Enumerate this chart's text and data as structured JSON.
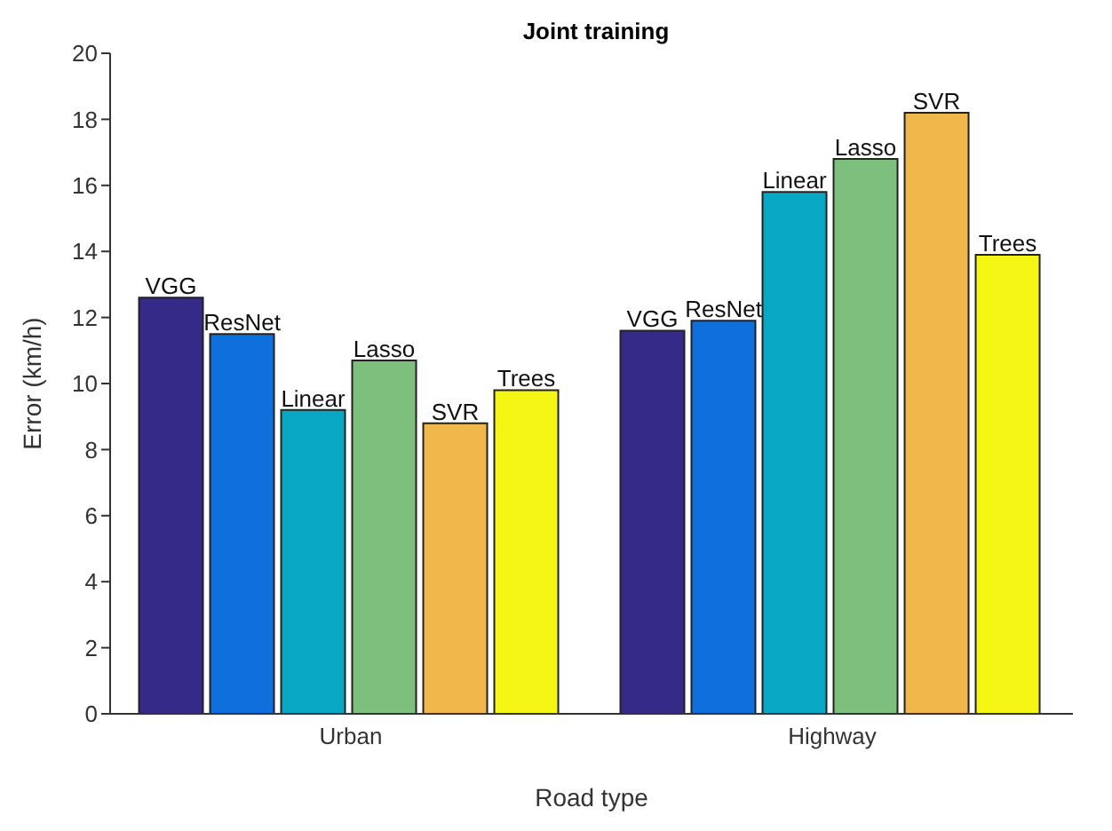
{
  "chart_data": {
    "type": "bar",
    "title": "Joint training",
    "xlabel": "Road type",
    "ylabel": "Error (km/h)",
    "categories": [
      "Urban",
      "Highway"
    ],
    "series": [
      {
        "name": "VGG",
        "color": "#352a87",
        "values": [
          12.6,
          11.6
        ]
      },
      {
        "name": "ResNet",
        "color": "#0f6fdc",
        "values": [
          11.5,
          11.9
        ]
      },
      {
        "name": "Linear",
        "color": "#08a8c4",
        "values": [
          9.2,
          15.8
        ]
      },
      {
        "name": "Lasso",
        "color": "#7dc07d",
        "values": [
          10.7,
          16.8
        ]
      },
      {
        "name": "SVR",
        "color": "#f0b84a",
        "values": [
          8.8,
          18.2
        ]
      },
      {
        "name": "Trees",
        "color": "#f6f614",
        "values": [
          9.8,
          13.9
        ]
      }
    ],
    "ylim": [
      0,
      20
    ],
    "yticks": [
      0,
      2,
      4,
      6,
      8,
      10,
      12,
      14,
      16,
      18,
      20
    ],
    "grid": false,
    "legend": false
  }
}
